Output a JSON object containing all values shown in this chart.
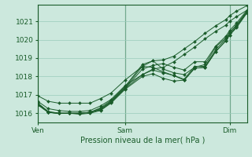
{
  "xlabel": "Pression niveau de la mer( hPa )",
  "bg_color": "#cce8dd",
  "grid_color": "#99ccbb",
  "line_color": "#1a5c2a",
  "ylim": [
    1015.5,
    1021.9
  ],
  "xlim": [
    0.0,
    1.0
  ],
  "xtick_positions": [
    0.0,
    0.417,
    0.917
  ],
  "xtick_labels": [
    "Ven",
    "Sam",
    "Dim"
  ],
  "ytick_positions": [
    1016,
    1017,
    1018,
    1019,
    1020,
    1021
  ],
  "vlines": [
    0.0,
    0.417,
    0.917
  ],
  "lines": [
    [
      [
        0.0,
        1016.95
      ],
      [
        0.05,
        1016.65
      ],
      [
        0.1,
        1016.55
      ],
      [
        0.15,
        1016.55
      ],
      [
        0.2,
        1016.55
      ],
      [
        0.25,
        1016.55
      ],
      [
        0.3,
        1016.8
      ],
      [
        0.35,
        1017.1
      ],
      [
        0.417,
        1017.8
      ],
      [
        0.5,
        1018.55
      ],
      [
        0.55,
        1018.85
      ],
      [
        0.6,
        1018.9
      ],
      [
        0.65,
        1019.1
      ],
      [
        0.7,
        1019.5
      ],
      [
        0.75,
        1019.9
      ],
      [
        0.8,
        1020.35
      ],
      [
        0.85,
        1020.75
      ],
      [
        0.9,
        1021.1
      ],
      [
        0.917,
        1021.3
      ],
      [
        0.95,
        1021.55
      ],
      [
        1.0,
        1021.85
      ]
    ],
    [
      [
        0.0,
        1016.65
      ],
      [
        0.05,
        1016.25
      ],
      [
        0.1,
        1016.15
      ],
      [
        0.15,
        1016.1
      ],
      [
        0.2,
        1016.1
      ],
      [
        0.25,
        1016.15
      ],
      [
        0.3,
        1016.4
      ],
      [
        0.35,
        1016.75
      ],
      [
        0.417,
        1017.5
      ],
      [
        0.5,
        1018.1
      ],
      [
        0.55,
        1018.4
      ],
      [
        0.6,
        1018.5
      ],
      [
        0.65,
        1018.8
      ],
      [
        0.7,
        1019.2
      ],
      [
        0.75,
        1019.6
      ],
      [
        0.8,
        1020.05
      ],
      [
        0.85,
        1020.45
      ],
      [
        0.9,
        1020.8
      ],
      [
        0.917,
        1021.0
      ],
      [
        0.95,
        1021.25
      ],
      [
        1.0,
        1021.6
      ]
    ],
    [
      [
        0.0,
        1016.55
      ],
      [
        0.05,
        1016.1
      ],
      [
        0.1,
        1016.0
      ],
      [
        0.15,
        1016.0
      ],
      [
        0.2,
        1016.0
      ],
      [
        0.25,
        1016.05
      ],
      [
        0.3,
        1016.3
      ],
      [
        0.35,
        1016.7
      ],
      [
        0.417,
        1017.45
      ],
      [
        0.5,
        1018.65
      ],
      [
        0.55,
        1018.85
      ],
      [
        0.6,
        1018.4
      ],
      [
        0.65,
        1018.2
      ],
      [
        0.7,
        1018.1
      ],
      [
        0.75,
        1018.5
      ],
      [
        0.8,
        1018.65
      ],
      [
        0.85,
        1019.6
      ],
      [
        0.9,
        1020.1
      ],
      [
        0.917,
        1020.4
      ],
      [
        0.95,
        1020.8
      ],
      [
        1.0,
        1021.55
      ]
    ],
    [
      [
        0.0,
        1016.55
      ],
      [
        0.05,
        1016.05
      ],
      [
        0.1,
        1016.0
      ],
      [
        0.15,
        1016.0
      ],
      [
        0.2,
        1016.0
      ],
      [
        0.25,
        1016.05
      ],
      [
        0.3,
        1016.25
      ],
      [
        0.35,
        1016.65
      ],
      [
        0.417,
        1017.4
      ],
      [
        0.5,
        1018.55
      ],
      [
        0.55,
        1018.5
      ],
      [
        0.6,
        1018.25
      ],
      [
        0.65,
        1018.05
      ],
      [
        0.7,
        1017.85
      ],
      [
        0.75,
        1018.55
      ],
      [
        0.8,
        1018.55
      ],
      [
        0.85,
        1019.45
      ],
      [
        0.9,
        1020.05
      ],
      [
        0.917,
        1020.35
      ],
      [
        0.95,
        1020.75
      ],
      [
        1.0,
        1021.5
      ]
    ],
    [
      [
        0.0,
        1016.5
      ],
      [
        0.05,
        1016.05
      ],
      [
        0.1,
        1016.0
      ],
      [
        0.15,
        1016.0
      ],
      [
        0.2,
        1016.0
      ],
      [
        0.25,
        1016.05
      ],
      [
        0.3,
        1016.2
      ],
      [
        0.35,
        1016.6
      ],
      [
        0.417,
        1017.35
      ],
      [
        0.5,
        1018.1
      ],
      [
        0.55,
        1018.35
      ],
      [
        0.6,
        1018.2
      ],
      [
        0.65,
        1018.05
      ],
      [
        0.7,
        1017.8
      ],
      [
        0.75,
        1018.45
      ],
      [
        0.8,
        1018.5
      ],
      [
        0.85,
        1019.35
      ],
      [
        0.9,
        1019.95
      ],
      [
        0.917,
        1020.25
      ],
      [
        0.95,
        1020.7
      ],
      [
        1.0,
        1021.5
      ]
    ],
    [
      [
        0.0,
        1016.5
      ],
      [
        0.05,
        1016.05
      ],
      [
        0.1,
        1016.0
      ],
      [
        0.15,
        1016.0
      ],
      [
        0.2,
        1015.95
      ],
      [
        0.25,
        1016.0
      ],
      [
        0.3,
        1016.15
      ],
      [
        0.35,
        1016.55
      ],
      [
        0.417,
        1017.3
      ],
      [
        0.5,
        1018.0
      ],
      [
        0.55,
        1018.15
      ],
      [
        0.6,
        1017.9
      ],
      [
        0.65,
        1017.75
      ],
      [
        0.7,
        1017.8
      ],
      [
        0.75,
        1018.45
      ],
      [
        0.8,
        1018.5
      ],
      [
        0.85,
        1019.35
      ],
      [
        0.9,
        1019.95
      ],
      [
        0.917,
        1020.25
      ],
      [
        0.95,
        1020.65
      ],
      [
        1.0,
        1021.45
      ]
    ],
    [
      [
        0.0,
        1016.45
      ],
      [
        0.05,
        1016.05
      ],
      [
        0.1,
        1016.0
      ],
      [
        0.15,
        1016.0
      ],
      [
        0.2,
        1016.0
      ],
      [
        0.25,
        1016.05
      ],
      [
        0.3,
        1016.2
      ],
      [
        0.35,
        1016.6
      ],
      [
        0.417,
        1017.35
      ],
      [
        0.5,
        1018.4
      ],
      [
        0.55,
        1018.6
      ],
      [
        0.6,
        1018.7
      ],
      [
        0.65,
        1018.5
      ],
      [
        0.7,
        1018.35
      ],
      [
        0.75,
        1018.8
      ],
      [
        0.8,
        1018.8
      ],
      [
        0.85,
        1019.65
      ],
      [
        0.9,
        1020.2
      ],
      [
        0.917,
        1020.5
      ],
      [
        0.95,
        1020.9
      ],
      [
        1.0,
        1021.6
      ]
    ]
  ]
}
